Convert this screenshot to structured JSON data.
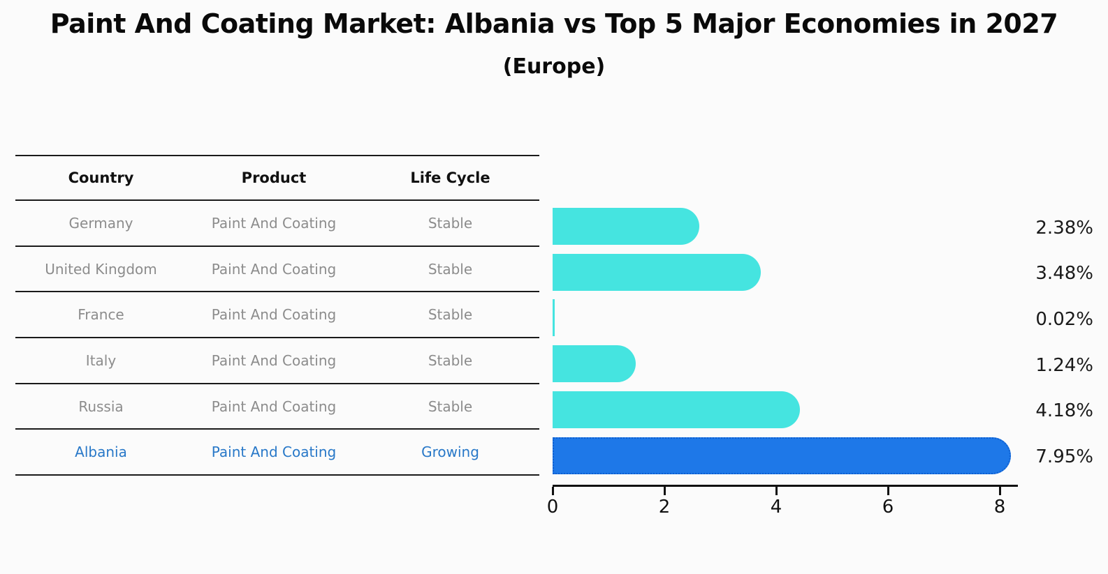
{
  "page": {
    "title": "Paint And Coating Market: Albania vs Top 5 Major Economies in 2027",
    "subtitle": "(Europe)",
    "background": "#FBFBFB"
  },
  "table": {
    "headers": [
      "Country",
      "Product",
      "Life Cycle"
    ],
    "rows": [
      {
        "country": "Germany",
        "product": "Paint And Coating",
        "life_cycle": "Stable",
        "highlighted": false
      },
      {
        "country": "United Kingdom",
        "product": "Paint And Coating",
        "life_cycle": "Stable",
        "highlighted": false
      },
      {
        "country": "France",
        "product": "Paint And Coating",
        "life_cycle": "Stable",
        "highlighted": false
      },
      {
        "country": "Italy",
        "product": "Paint And Coating",
        "life_cycle": "Stable",
        "highlighted": false
      },
      {
        "country": "Russia",
        "product": "Paint And Coating",
        "life_cycle": "Stable",
        "highlighted": false
      },
      {
        "country": "Albania",
        "product": "Paint And Coating",
        "life_cycle": "Growing",
        "highlighted": true
      }
    ],
    "text_color": "#8c8c8c",
    "highlight_text_color": "#2878C8",
    "header_text_color": "#111111"
  },
  "chart_data": {
    "type": "bar",
    "orientation": "horizontal",
    "title": "Paint And Coating Market: Albania vs Top 5 Major Economies in 2027",
    "subtitle": "(Europe)",
    "categories": [
      "Germany",
      "United Kingdom",
      "France",
      "Italy",
      "Russia",
      "Albania"
    ],
    "values": [
      2.38,
      3.48,
      0.02,
      1.24,
      4.18,
      7.95
    ],
    "value_labels": [
      "2.38%",
      "3.48%",
      "0.02%",
      "1.24%",
      "4.18%",
      "7.95%"
    ],
    "xlabel": "",
    "ylabel": "",
    "xticks": [
      0,
      2,
      4,
      6,
      8
    ],
    "xlim": [
      0,
      8.35
    ],
    "grid": false,
    "legend": false,
    "bar_color": "#45E4E0",
    "highlight_bar_color": "#1E78E8",
    "highlight_border_color": "#0E5FD0",
    "highlight_index": 5,
    "axis_color": "#111111"
  }
}
